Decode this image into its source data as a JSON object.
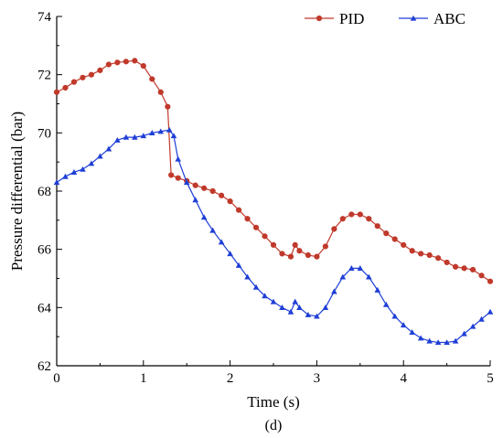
{
  "chart_data": {
    "type": "line",
    "xlabel": "Time (s)",
    "ylabel": "Pressure differential (bar)",
    "caption": "(d)",
    "xlim": [
      0,
      5
    ],
    "ylim": [
      62,
      74
    ],
    "xticks": [
      "0",
      "1",
      "2",
      "3",
      "4",
      "5"
    ],
    "yticks": [
      "62",
      "64",
      "66",
      "68",
      "70",
      "72",
      "74"
    ],
    "grid": false,
    "legend": "top-right",
    "series": [
      {
        "name": "PID",
        "color": "#c0392b",
        "marker": "circle",
        "points": [
          [
            0.0,
            71.4
          ],
          [
            0.1,
            71.55
          ],
          [
            0.2,
            71.75
          ],
          [
            0.3,
            71.9
          ],
          [
            0.4,
            72.0
          ],
          [
            0.5,
            72.15
          ],
          [
            0.6,
            72.35
          ],
          [
            0.7,
            72.42
          ],
          [
            0.8,
            72.45
          ],
          [
            0.9,
            72.48
          ],
          [
            1.0,
            72.3
          ],
          [
            1.1,
            71.85
          ],
          [
            1.2,
            71.4
          ],
          [
            1.28,
            70.9
          ],
          [
            1.32,
            68.55
          ],
          [
            1.4,
            68.45
          ],
          [
            1.5,
            68.35
          ],
          [
            1.6,
            68.2
          ],
          [
            1.7,
            68.1
          ],
          [
            1.8,
            68.0
          ],
          [
            1.9,
            67.85
          ],
          [
            2.0,
            67.65
          ],
          [
            2.1,
            67.35
          ],
          [
            2.2,
            67.05
          ],
          [
            2.3,
            66.75
          ],
          [
            2.4,
            66.45
          ],
          [
            2.5,
            66.15
          ],
          [
            2.6,
            65.85
          ],
          [
            2.7,
            65.75
          ],
          [
            2.75,
            66.15
          ],
          [
            2.8,
            65.95
          ],
          [
            2.9,
            65.8
          ],
          [
            3.0,
            65.75
          ],
          [
            3.1,
            66.1
          ],
          [
            3.2,
            66.7
          ],
          [
            3.3,
            67.05
          ],
          [
            3.4,
            67.2
          ],
          [
            3.5,
            67.2
          ],
          [
            3.6,
            67.05
          ],
          [
            3.7,
            66.8
          ],
          [
            3.8,
            66.55
          ],
          [
            3.9,
            66.35
          ],
          [
            4.0,
            66.15
          ],
          [
            4.1,
            65.95
          ],
          [
            4.2,
            65.85
          ],
          [
            4.3,
            65.8
          ],
          [
            4.4,
            65.7
          ],
          [
            4.5,
            65.55
          ],
          [
            4.6,
            65.4
          ],
          [
            4.7,
            65.35
          ],
          [
            4.8,
            65.3
          ],
          [
            4.9,
            65.1
          ],
          [
            5.0,
            64.9
          ]
        ]
      },
      {
        "name": "ABC",
        "color": "#1f3fd6",
        "marker": "triangle",
        "points": [
          [
            0.0,
            68.3
          ],
          [
            0.1,
            68.5
          ],
          [
            0.2,
            68.65
          ],
          [
            0.3,
            68.75
          ],
          [
            0.4,
            68.95
          ],
          [
            0.5,
            69.2
          ],
          [
            0.6,
            69.45
          ],
          [
            0.7,
            69.75
          ],
          [
            0.8,
            69.85
          ],
          [
            0.9,
            69.85
          ],
          [
            1.0,
            69.9
          ],
          [
            1.1,
            70.0
          ],
          [
            1.2,
            70.05
          ],
          [
            1.3,
            70.1
          ],
          [
            1.35,
            69.9
          ],
          [
            1.4,
            69.1
          ],
          [
            1.5,
            68.3
          ],
          [
            1.6,
            67.7
          ],
          [
            1.7,
            67.1
          ],
          [
            1.8,
            66.65
          ],
          [
            1.9,
            66.25
          ],
          [
            2.0,
            65.85
          ],
          [
            2.1,
            65.45
          ],
          [
            2.2,
            65.05
          ],
          [
            2.3,
            64.7
          ],
          [
            2.4,
            64.4
          ],
          [
            2.5,
            64.2
          ],
          [
            2.6,
            64.0
          ],
          [
            2.7,
            63.85
          ],
          [
            2.75,
            64.2
          ],
          [
            2.8,
            64.0
          ],
          [
            2.9,
            63.75
          ],
          [
            3.0,
            63.7
          ],
          [
            3.1,
            64.0
          ],
          [
            3.2,
            64.55
          ],
          [
            3.3,
            65.05
          ],
          [
            3.4,
            65.35
          ],
          [
            3.5,
            65.35
          ],
          [
            3.6,
            65.05
          ],
          [
            3.7,
            64.6
          ],
          [
            3.8,
            64.1
          ],
          [
            3.9,
            63.7
          ],
          [
            4.0,
            63.4
          ],
          [
            4.1,
            63.15
          ],
          [
            4.2,
            62.95
          ],
          [
            4.3,
            62.85
          ],
          [
            4.4,
            62.8
          ],
          [
            4.5,
            62.8
          ],
          [
            4.6,
            62.85
          ],
          [
            4.7,
            63.1
          ],
          [
            4.8,
            63.35
          ],
          [
            4.9,
            63.6
          ],
          [
            5.0,
            63.85
          ]
        ]
      }
    ]
  }
}
